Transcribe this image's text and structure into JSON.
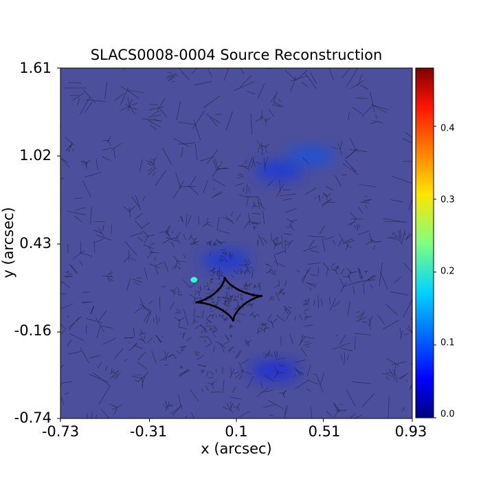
{
  "chart_data": {
    "type": "heatmap",
    "title": "SLACS0008-0004 Source Reconstruction",
    "xlabel": "x (arcsec)",
    "ylabel": "y (arcsec)",
    "xlim": [
      -0.73,
      0.93
    ],
    "ylim": [
      -0.74,
      1.61
    ],
    "x_ticks": [
      "-0.73",
      "-0.31",
      "0.1",
      "0.51",
      "0.93"
    ],
    "y_ticks": [
      "1.61",
      "1.02",
      "0.43",
      "-0.16",
      "-0.74"
    ],
    "colorbar": {
      "colormap": "jet",
      "range": [
        0.0,
        0.48
      ],
      "ticks": [
        "0.0",
        "0.1",
        "0.2",
        "0.3",
        "0.4"
      ]
    },
    "background_value": 0.05,
    "features": [
      {
        "name": "faint arc",
        "x": 0.3,
        "y": 0.92,
        "value": 0.08
      },
      {
        "name": "faint arc",
        "x": 0.45,
        "y": 1.02,
        "value": 0.1
      },
      {
        "name": "faint knot",
        "x": 0.05,
        "y": 0.32,
        "value": 0.08
      },
      {
        "name": "faint knot",
        "x": 0.28,
        "y": -0.42,
        "value": 0.07
      },
      {
        "name": "bright clump",
        "x": -0.1,
        "y": 0.19,
        "value": 0.2
      }
    ],
    "caustic": {
      "center": [
        0.065,
        0.06
      ],
      "half_width": 0.16,
      "half_height": 0.15,
      "rotation_deg": 8
    },
    "colors": {
      "background": "#4b4f9c",
      "mesh_line": "#1a1a2e",
      "caustic_line": "#000000"
    }
  }
}
